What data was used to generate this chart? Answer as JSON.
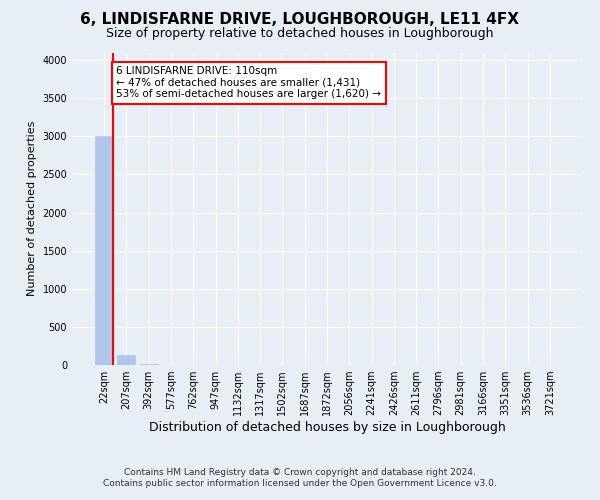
{
  "title": "6, LINDISFARNE DRIVE, LOUGHBOROUGH, LE11 4FX",
  "subtitle": "Size of property relative to detached houses in Loughborough",
  "xlabel": "Distribution of detached houses by size in Loughborough",
  "ylabel": "Number of detached properties",
  "footnote1": "Contains HM Land Registry data © Crown copyright and database right 2024.",
  "footnote2": "Contains public sector information licensed under the Open Government Licence v3.0.",
  "categories": [
    "22sqm",
    "207sqm",
    "392sqm",
    "577sqm",
    "762sqm",
    "947sqm",
    "1132sqm",
    "1317sqm",
    "1502sqm",
    "1687sqm",
    "1872sqm",
    "2056sqm",
    "2241sqm",
    "2426sqm",
    "2611sqm",
    "2796sqm",
    "2981sqm",
    "3166sqm",
    "3351sqm",
    "3536sqm",
    "3721sqm"
  ],
  "values": [
    3000,
    125,
    15,
    5,
    3,
    2,
    1,
    1,
    1,
    1,
    1,
    1,
    1,
    0,
    0,
    0,
    0,
    0,
    0,
    0,
    0
  ],
  "bar_color": "#aec6e8",
  "bar_edge_color": "#aec6e8",
  "annotation_line1": "6 LINDISFARNE DRIVE: 110sqm",
  "annotation_line2": "← 47% of detached houses are smaller (1,431)",
  "annotation_line3": "53% of semi-detached houses are larger (1,620) →",
  "annotation_box_color": "white",
  "annotation_box_edge_color": "red",
  "vline_color": "red",
  "ylim": [
    0,
    4100
  ],
  "yticks": [
    0,
    500,
    1000,
    1500,
    2000,
    2500,
    3000,
    3500,
    4000
  ],
  "bg_color": "#e8eef5",
  "plot_bg_color": "#e8eef5",
  "grid_color": "white",
  "title_fontsize": 11,
  "subtitle_fontsize": 9,
  "tick_fontsize": 7,
  "ylabel_fontsize": 8,
  "xlabel_fontsize": 9,
  "annotation_fontsize": 7.5
}
